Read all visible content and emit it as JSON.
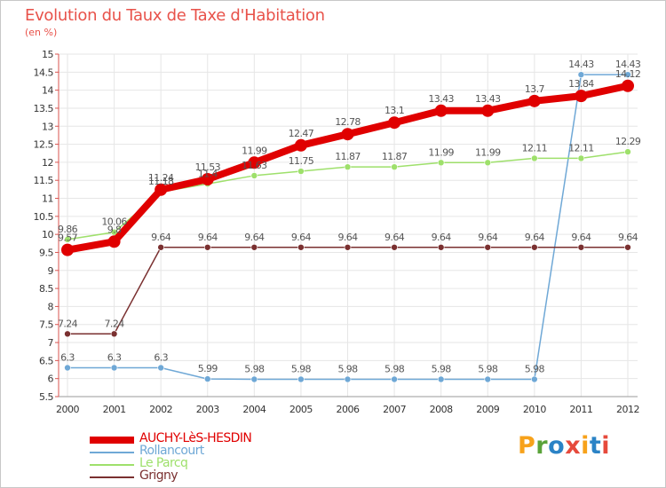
{
  "title": "Evolution du Taux de Taxe d'Habitation",
  "unit": "(en %)",
  "logo": {
    "text": "Proxiti",
    "colors": [
      "#f7a21b",
      "#5aa33a",
      "#2b83c6",
      "#e64a3c",
      "#f7a21b",
      "#2b83c6",
      "#e64a3c"
    ]
  },
  "chart_data": {
    "type": "line",
    "x": [
      "2000",
      "2001",
      "2002",
      "2003",
      "2004",
      "2005",
      "2006",
      "2007",
      "2008",
      "2009",
      "2010",
      "2011",
      "2012"
    ],
    "ylim": [
      5.5,
      15
    ],
    "ytick_step": 0.5,
    "grid": true,
    "legend_position": "bottom-left",
    "series": [
      {
        "name": "AUCHY-LèS-HESDIN",
        "color": "#e00000",
        "values": [
          9.57,
          9.8,
          11.24,
          11.53,
          11.99,
          12.47,
          12.78,
          13.1,
          13.43,
          13.43,
          13.7,
          13.84,
          14.12
        ],
        "labels": [
          "9.57",
          "9.8",
          "11.24",
          "11.53",
          "11.99",
          "12.47",
          "12.78",
          "13.1",
          "13.43",
          "13.43",
          "13.7",
          "13.84",
          "14.12"
        ]
      },
      {
        "name": "Rollancourt",
        "color": "#6fa8d6",
        "values": [
          6.3,
          6.3,
          6.3,
          5.99,
          5.98,
          5.98,
          5.98,
          5.98,
          5.98,
          5.98,
          5.98,
          14.43,
          14.43
        ],
        "labels": [
          "6.3",
          "6.3",
          "6.3",
          "5.99",
          "5.98",
          "5.98",
          "5.98",
          "5.98",
          "5.98",
          "5.98",
          "5.98",
          "14.43",
          "14.43"
        ]
      },
      {
        "name": "Le Parcq",
        "color": "#9ee06b",
        "values": [
          9.86,
          10.06,
          11.18,
          11.4,
          11.63,
          11.75,
          11.87,
          11.87,
          11.99,
          11.99,
          12.11,
          12.11,
          12.29
        ],
        "labels": [
          "9.86",
          "10.06",
          "11.18",
          "11.4",
          "11.63",
          "11.75",
          "11.87",
          "11.87",
          "11.99",
          "11.99",
          "12.11",
          "12.11",
          "12.29"
        ]
      },
      {
        "name": "Grigny",
        "color": "#7a3030",
        "values": [
          7.24,
          7.24,
          9.64,
          9.64,
          9.64,
          9.64,
          9.64,
          9.64,
          9.64,
          9.64,
          9.64,
          9.64,
          9.64
        ],
        "labels": [
          "7.24",
          "7.24",
          "9.64",
          "9.64",
          "9.64",
          "9.64",
          "9.64",
          "9.64",
          "9.64",
          "9.64",
          "9.64",
          "9.64",
          "9.64"
        ]
      }
    ]
  }
}
